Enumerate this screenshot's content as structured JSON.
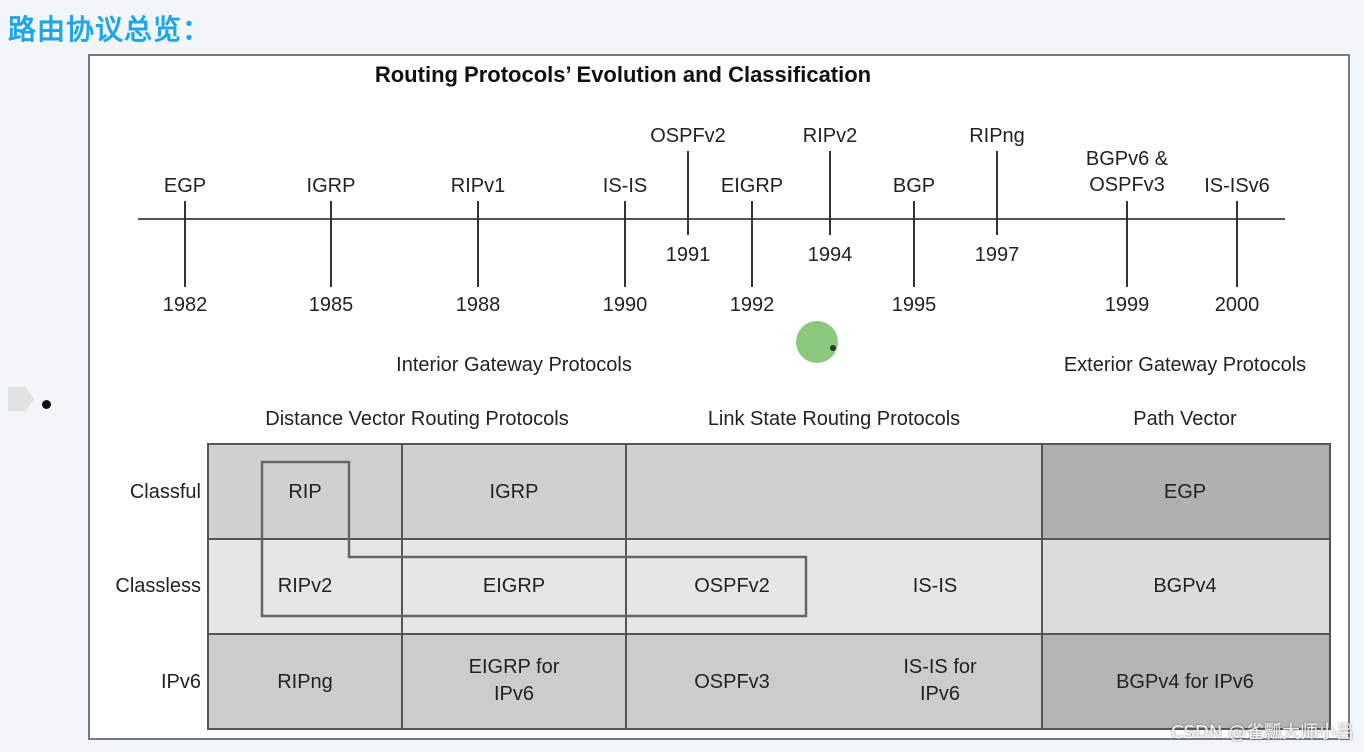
{
  "heading": "路由协议总览：",
  "diagram": {
    "title": "Routing Protocols’ Evolution and Classification",
    "timeline": [
      {
        "name": "EGP",
        "year": "1982"
      },
      {
        "name": "IGRP",
        "year": "1985"
      },
      {
        "name": "RIPv1",
        "year": "1988"
      },
      {
        "name": "IS-IS",
        "year": "1990"
      },
      {
        "name": "OSPFv2",
        "year": "1991"
      },
      {
        "name": "EIGRP",
        "year": "1992"
      },
      {
        "name": "RIPv2",
        "year": "1994"
      },
      {
        "name": "BGP",
        "year": "1995"
      },
      {
        "name": "RIPng",
        "year": "1997"
      },
      {
        "name": "BGPv6 &\nOSPFv3",
        "year": "1999"
      },
      {
        "name": "IS-ISv6",
        "year": "2000"
      }
    ],
    "interior_label": "Interior Gateway Protocols",
    "exterior_label": "Exterior Gateway Protocols",
    "column_headers": [
      "Distance Vector Routing Protocols",
      "Link State Routing Protocols",
      "Path Vector"
    ],
    "row_headers": [
      "Classful",
      "Classless",
      "IPv6"
    ],
    "cells": {
      "classful": [
        "RIP",
        "IGRP",
        "",
        "",
        "EGP"
      ],
      "classless": [
        "RIPv2",
        "EIGRP",
        "OSPFv2",
        "IS-IS",
        "BGPv4"
      ],
      "ipv6": [
        "RIPng",
        "EIGRP for\nIPv6",
        "OSPFv3",
        "IS-IS for\nIPv6",
        "BGPv4 for IPv6"
      ]
    }
  },
  "watermark": "CSDN @雀瓢大师小吕",
  "colors": {
    "heading": "#1fa6e8",
    "row_classful": "#d0d0d0",
    "row_classless": "#e6e6e6",
    "row_ipv6": "#cccccc",
    "egp_cell": "#b0b0b0",
    "bgpv4_cell": "#dcdcdc",
    "bgpv4ipv6_cell": "#b4b4b4",
    "pointer_dot": "#7cc26f"
  }
}
